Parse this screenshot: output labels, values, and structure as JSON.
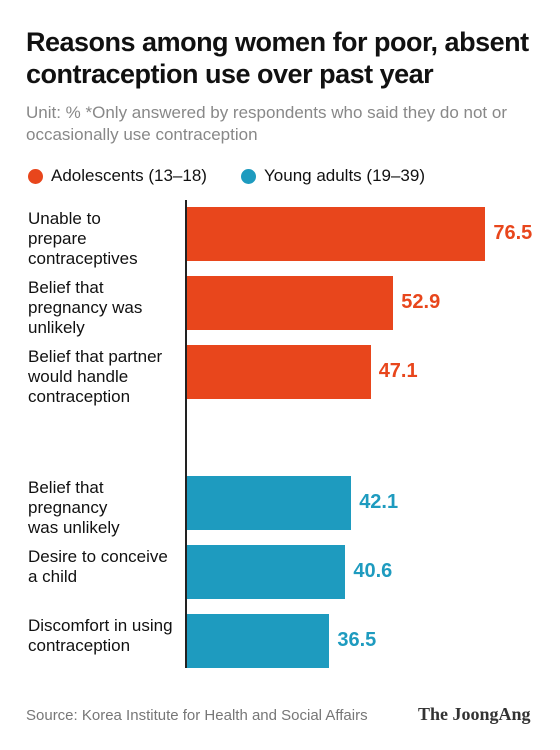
{
  "chart_data": {
    "type": "bar",
    "title": "Reasons among women for poor, absent contraception use over past year",
    "subtitle": "Unit: % *Only answered by respondents who said they do not or occasionally use contraception",
    "series": [
      {
        "name": "Adolescents (13–18)",
        "color": "#e8461c",
        "categories": [
          "Unable to\nprepare\ncontraceptives",
          "Belief that\npregnancy was\nunlikely",
          "Belief that partner\nwould handle\ncontraception"
        ],
        "values": [
          76.5,
          52.9,
          47.1
        ]
      },
      {
        "name": "Young adults (19–39)",
        "color": "#1e9bbf",
        "categories": [
          "Belief that\npregnancy\nwas unlikely",
          "Desire to conceive\na child",
          "Discomfort in using\ncontraception"
        ],
        "values": [
          42.1,
          40.6,
          36.5
        ]
      }
    ],
    "source": "Source: Korea Institute for Health and Social Affairs",
    "publisher": "The JoongAng"
  }
}
